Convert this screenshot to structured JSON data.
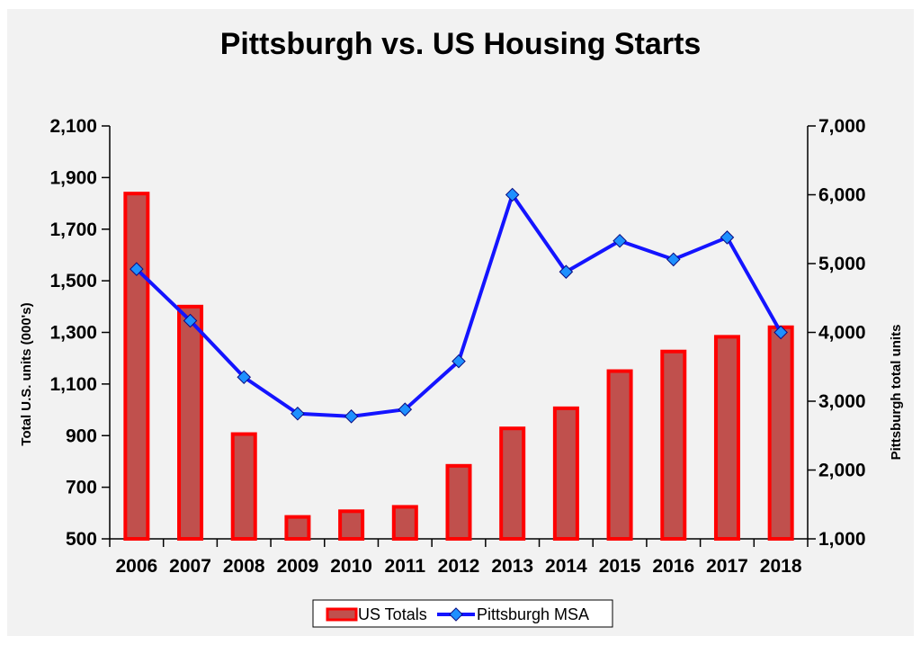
{
  "chart_data": {
    "type": "bar",
    "title": "Pittsburgh vs. US Housing Starts",
    "categories": [
      "2006",
      "2007",
      "2008",
      "2009",
      "2010",
      "2011",
      "2012",
      "2013",
      "2014",
      "2015",
      "2016",
      "2017",
      "2018"
    ],
    "series": [
      {
        "name": "US Totals",
        "type": "bar",
        "axis": "left",
        "values": [
          1838,
          1400,
          906,
          585,
          607,
          624,
          783,
          928,
          1006,
          1150,
          1226,
          1283,
          1320
        ]
      },
      {
        "name": "Pittsburgh MSA",
        "type": "line",
        "axis": "right",
        "values": [
          4920,
          4170,
          3350,
          2820,
          2780,
          2880,
          3580,
          6000,
          4880,
          5330,
          5060,
          5380,
          4000
        ]
      }
    ],
    "ylabel": "Total U.S. units (000's)",
    "y2label": "Pittsburgh total units",
    "ylim": [
      500,
      2100
    ],
    "y2lim": [
      1000,
      7000
    ],
    "yticks": [
      "2,100",
      "1,900",
      "1,700",
      "1,500",
      "1,300",
      "1,100",
      "900",
      "700",
      "500"
    ],
    "y2ticks": [
      "7,000",
      "6,000",
      "5,000",
      "4,000",
      "3,000",
      "2,000",
      "1,000"
    ],
    "grid": false,
    "legend_position": "bottom",
    "colors": {
      "bar_fill": "#c0504d",
      "bar_stroke": "#ff0000",
      "line": "#1414ff",
      "marker": "#1e90ff",
      "background": "#f2f2f2"
    }
  }
}
